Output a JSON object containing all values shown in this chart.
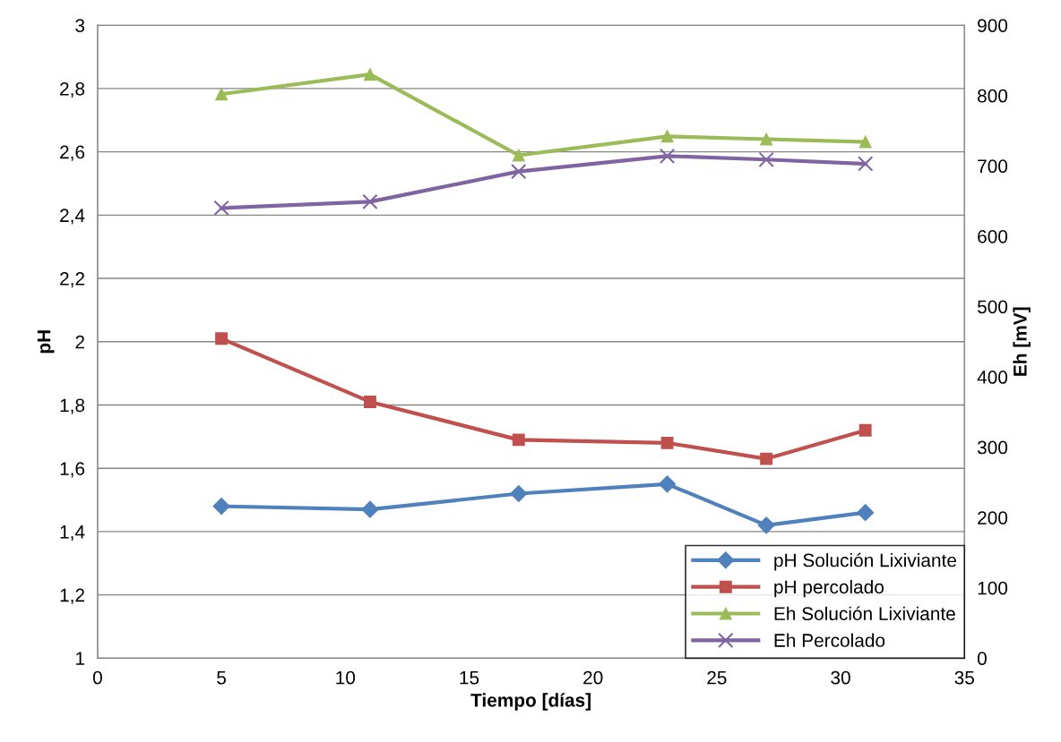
{
  "chart_data": {
    "type": "line",
    "xlabel": "Tiempo [días]",
    "ylabel": "pH",
    "y2label": "Eh [mV]",
    "x": [
      5,
      11,
      17,
      23,
      27,
      31
    ],
    "xlim": [
      0,
      35
    ],
    "xticks": [
      0,
      5,
      10,
      15,
      20,
      25,
      30,
      35
    ],
    "ylim": [
      1,
      3
    ],
    "yticks": [
      1,
      {
        "value": 1.2,
        "label": "1,2"
      },
      {
        "value": 1.4,
        "label": "1,4"
      },
      {
        "value": 1.6,
        "label": "1,6"
      },
      {
        "value": 1.8,
        "label": "1,8"
      },
      2,
      {
        "value": 2.2,
        "label": "2,2"
      },
      {
        "value": 2.4,
        "label": "2,4"
      },
      {
        "value": 2.6,
        "label": "2,6"
      },
      {
        "value": 2.8,
        "label": "2,8"
      },
      3
    ],
    "y2lim": [
      0,
      900
    ],
    "y2ticks": [
      0,
      100,
      200,
      300,
      400,
      500,
      600,
      700,
      800,
      900
    ],
    "grid": "y",
    "legend": "bottom right",
    "series": [
      {
        "name": "pH Solución Lixiviante",
        "color": "#4f81bd",
        "marker": "diamond",
        "values": [
          1.48,
          1.47,
          1.52,
          1.55,
          1.42,
          1.46
        ]
      },
      {
        "name": "pH percolado",
        "color": "#c0504d",
        "marker": "square",
        "values": [
          2.01,
          1.81,
          1.69,
          1.68,
          1.63,
          1.72
        ]
      },
      {
        "name": "Eh Solución Lixiviante",
        "color": "#9bbb59",
        "marker": "triangle",
        "axis": "y2",
        "values": [
          802,
          830,
          715,
          742,
          738,
          734
        ]
      },
      {
        "name": "Eh Percolado",
        "color": "#8064a2",
        "marker": "cross",
        "axis": "y2",
        "values": [
          640,
          649,
          692,
          714,
          709,
          703
        ]
      }
    ]
  }
}
